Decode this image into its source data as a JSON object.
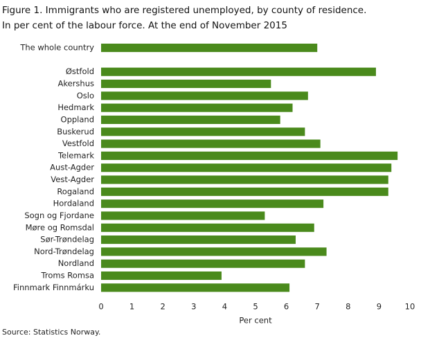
{
  "chart_data": {
    "type": "hbar",
    "title": "Figure 1. Immigrants who are registered unemployed, by county of residence.",
    "subtitle": "In per cent of the labour force. At the end of November 2015",
    "x_label": "Per cent",
    "source": "Source: Statistics Norway.",
    "categories": [
      "The whole country",
      null,
      "Østfold",
      "Akershus",
      "Oslo",
      "Hedmark",
      "Oppland",
      "Buskerud",
      "Vestfold",
      "Telemark",
      "Aust-Agder",
      "Vest-Agder",
      "Rogaland",
      "Hordaland",
      "Sogn og Fjordane",
      "Møre og Romsdal",
      "Sør-Trøndelag",
      "Nord-Trøndelag",
      "Nordland",
      "Troms Romsa",
      "Finnmark Finnmárku"
    ],
    "values": [
      7.0,
      null,
      8.9,
      5.5,
      6.7,
      6.2,
      5.8,
      6.6,
      7.1,
      9.6,
      9.4,
      9.3,
      9.3,
      7.2,
      5.3,
      6.9,
      6.3,
      7.3,
      6.6,
      3.9,
      6.1
    ],
    "color": "#4a8a1c",
    "xlim": [
      0,
      10
    ],
    "xticks": [
      0,
      1,
      2,
      3,
      4,
      5,
      6,
      7,
      8,
      9,
      10
    ],
    "grid": false
  }
}
